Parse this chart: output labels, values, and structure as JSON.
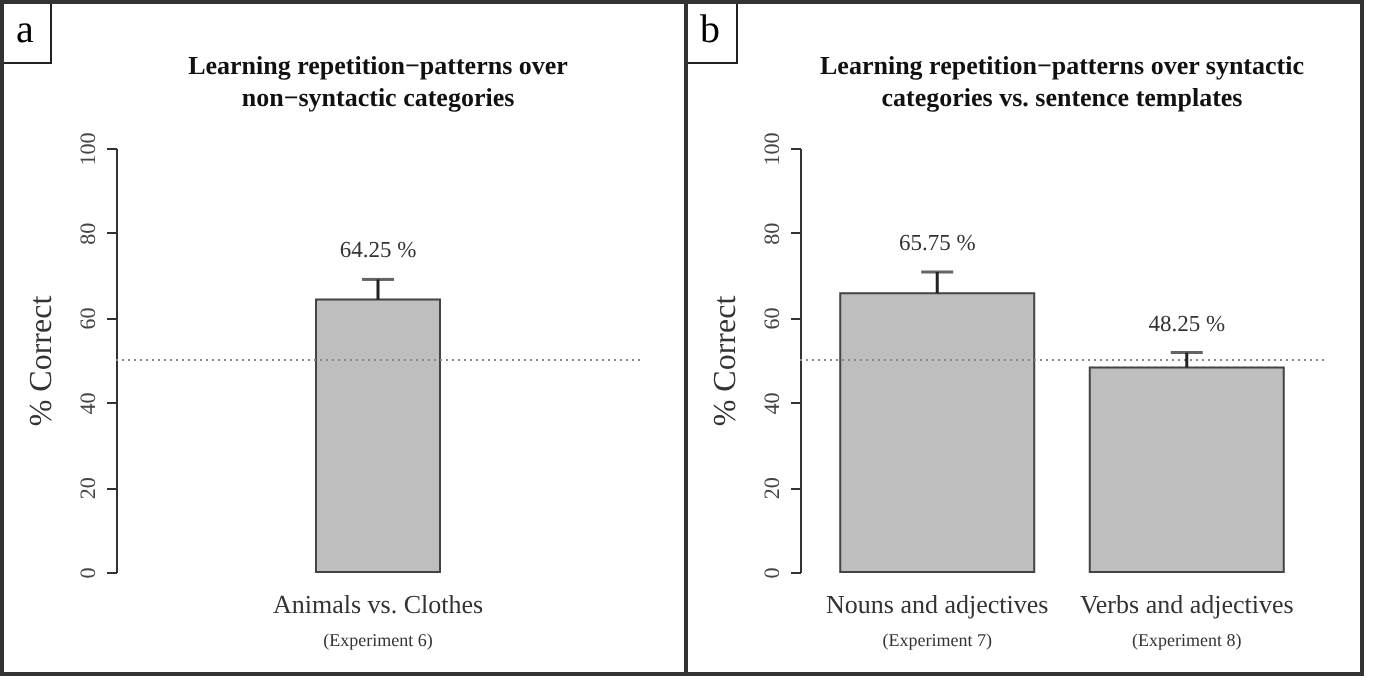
{
  "chart_data": [
    {
      "type": "bar",
      "title": "Learning repetition−patterns over non−syntactic categories",
      "ylabel": "% Correct",
      "categories": [
        "Animals vs. Clothes"
      ],
      "values": [
        64.25
      ],
      "errors": [
        [
          64.25,
          69
        ]
      ],
      "value_labels": [
        "64.25 %"
      ],
      "color": "#bebebe",
      "ylim": [
        0,
        100
      ],
      "yticks": [
        0,
        20,
        40,
        60,
        80,
        100
      ],
      "grid": false,
      "ref_lines": [
        {
          "axis": "y",
          "value": 50,
          "line_style": "dotted",
          "color": "#888888"
        }
      ],
      "annotations": [
        "a",
        "(Experiment 6)"
      ]
    },
    {
      "type": "bar",
      "title": "Learning repetition−patterns over syntactic categories vs. sentence templates",
      "ylabel": "% Correct",
      "categories": [
        "Nouns and adjectives",
        "Verbs and adjectives"
      ],
      "values": [
        65.75,
        48.25
      ],
      "errors": [
        [
          65.75,
          70.75
        ],
        [
          48.25,
          51.75
        ]
      ],
      "value_labels": [
        "65.75 %",
        "48.25 %"
      ],
      "color": "#bebebe",
      "ylim": [
        0,
        100
      ],
      "yticks": [
        0,
        20,
        40,
        60,
        80,
        100
      ],
      "grid": false,
      "ref_lines": [
        {
          "axis": "y",
          "value": 50,
          "line_style": "dotted",
          "color": "#888888"
        }
      ],
      "annotations": [
        "b",
        "(Experiment 7)",
        "(Experiment 8)"
      ]
    }
  ]
}
